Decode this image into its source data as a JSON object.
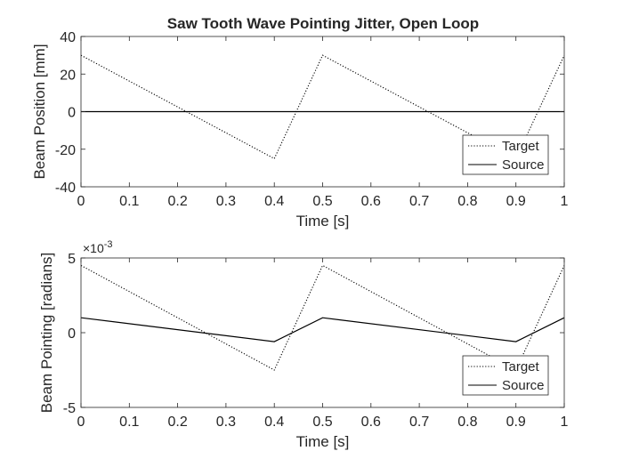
{
  "title": "Saw Tooth Wave Pointing Jitter, Open Loop",
  "chart_data": [
    {
      "type": "line",
      "xlabel": "Time [s]",
      "ylabel": "Beam Position [mm]",
      "xlim": [
        0,
        1
      ],
      "ylim": [
        -40,
        40
      ],
      "xticks": [
        0,
        0.1,
        0.2,
        0.3,
        0.4,
        0.5,
        0.6,
        0.7,
        0.8,
        0.9,
        1
      ],
      "xtick_labels": [
        "0",
        "0.1",
        "0.2",
        "0.3",
        "0.4",
        "0.5",
        "0.6",
        "0.7",
        "0.8",
        "0.9",
        "1"
      ],
      "yticks": [
        -40,
        -20,
        0,
        20,
        40
      ],
      "ytick_labels": [
        "-40",
        "-20",
        "0",
        "20",
        "40"
      ],
      "exponent_label": "",
      "grid": false,
      "legend": "bottom-right",
      "series": [
        {
          "name": "Target",
          "style": "dotted",
          "color": "#000000",
          "x": [
            0,
            0.4,
            0.5,
            0.9,
            1
          ],
          "y": [
            30,
            -25,
            30,
            -25,
            30
          ]
        },
        {
          "name": "Source",
          "style": "solid",
          "color": "#000000",
          "x": [
            0,
            1
          ],
          "y": [
            0,
            0
          ]
        }
      ]
    },
    {
      "type": "line",
      "xlabel": "Time [s]",
      "ylabel": "Beam Pointing [radians]",
      "xlim": [
        0,
        1
      ],
      "ylim": [
        -0.005,
        0.005
      ],
      "xticks": [
        0,
        0.1,
        0.2,
        0.3,
        0.4,
        0.5,
        0.6,
        0.7,
        0.8,
        0.9,
        1
      ],
      "xtick_labels": [
        "0",
        "0.1",
        "0.2",
        "0.3",
        "0.4",
        "0.5",
        "0.6",
        "0.7",
        "0.8",
        "0.9",
        "1"
      ],
      "yticks": [
        -0.005,
        0,
        0.005
      ],
      "ytick_labels": [
        "-5",
        "0",
        "5"
      ],
      "exponent_label": "×10",
      "exponent_power": "-3",
      "grid": false,
      "legend": "bottom-right",
      "series": [
        {
          "name": "Target",
          "style": "dotted",
          "color": "#000000",
          "x": [
            0,
            0.4,
            0.5,
            0.9,
            1
          ],
          "y": [
            0.0045,
            -0.0025,
            0.0045,
            -0.0025,
            0.0045
          ]
        },
        {
          "name": "Source",
          "style": "solid",
          "color": "#000000",
          "x": [
            0,
            0.4,
            0.5,
            0.9,
            1
          ],
          "y": [
            0.001,
            -0.0006,
            0.001,
            -0.0006,
            0.001
          ]
        }
      ]
    }
  ]
}
